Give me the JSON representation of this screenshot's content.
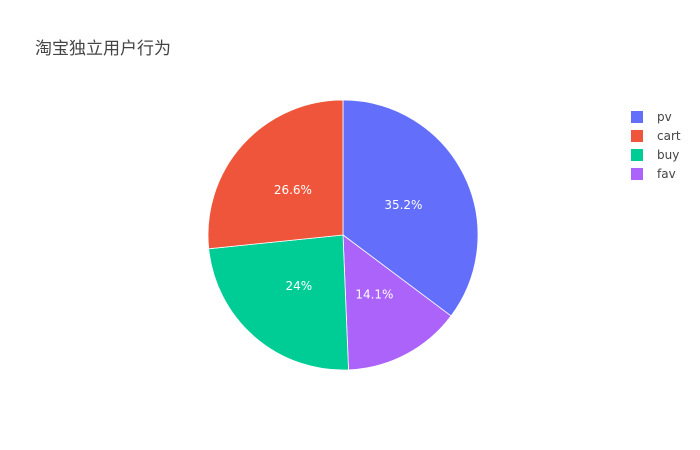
{
  "chart_data": {
    "type": "pie",
    "title": "淘宝独立用户行为",
    "slices": [
      {
        "name": "pv",
        "percent": 35.2,
        "label": "35.2%",
        "color": "#636efa"
      },
      {
        "name": "fav",
        "percent": 14.1,
        "label": "14.1%",
        "color": "#ab63fa"
      },
      {
        "name": "buy",
        "percent": 24.0,
        "label": "24%",
        "color": "#00cc96"
      },
      {
        "name": "cart",
        "percent": 26.6,
        "label": "26.6%",
        "color": "#ef553b"
      }
    ],
    "legend": {
      "placement": "right",
      "entries": [
        {
          "name": "pv",
          "color": "#636efa"
        },
        {
          "name": "cart",
          "color": "#ef553b"
        },
        {
          "name": "buy",
          "color": "#00cc96"
        },
        {
          "name": "fav",
          "color": "#ab63fa"
        }
      ]
    }
  }
}
